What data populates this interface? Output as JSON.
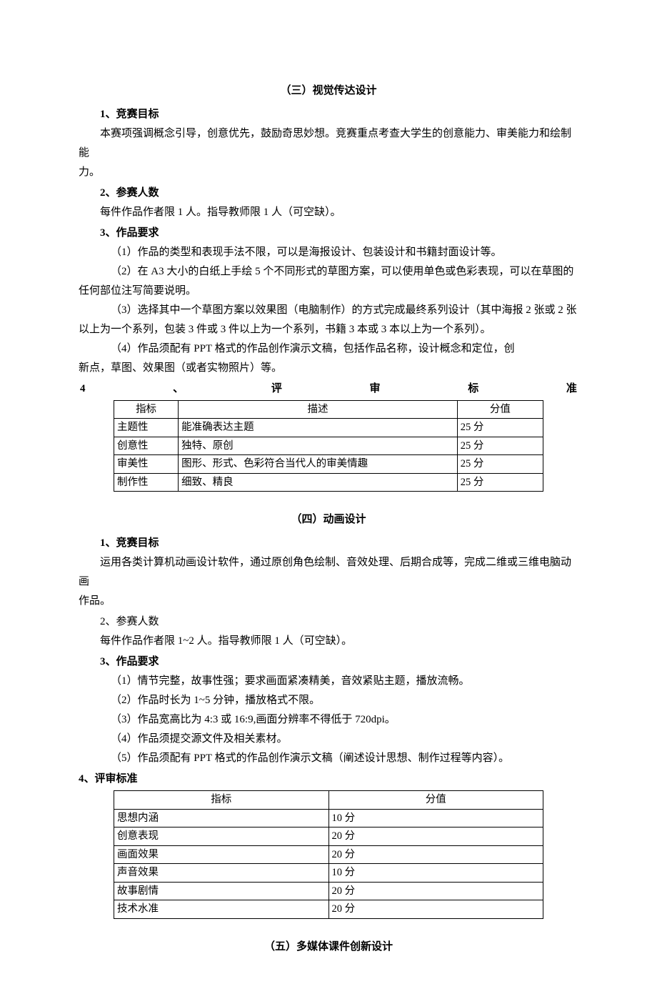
{
  "s3": {
    "title": "（三）视觉传达设计",
    "h1": "1、竞赛目标",
    "p1a": "本赛项强调概念引导，创意优先，鼓励奇思妙想。竞赛重点考查大学生的创意能力、审美能力和绘制能",
    "p1b": "力。",
    "h2": "2、参赛人数",
    "p2": "每件作品作者限 1 人。指导教师限 1 人（可空缺）。",
    "h3": "3、作品要求",
    "i1": "（1）作品的类型和表现手法不限，可以是海报设计、包装设计和书籍封面设计等。",
    "i2a": "（2）在 A3 大小的白纸上手绘 5 个不同形式的草图方案，可以使用单色或色彩表现，可以在草图的",
    "i2b": "任何部位注写简要说明。",
    "i3a": "（3）选择其中一个草图方案以效果图（电脑制作）的方式完成最终系列设计（其中海报 2 张或 2 张",
    "i3b": "以上为一个系列，包装 3 件或 3 件以上为一个系列，书籍 3 本或 3 本以上为一个系列）。",
    "i4a": "（4）作品须配有 PPT 格式的作品创作演示文稿，包括作品名称，设计概念和定位，创",
    "i4b": "新点，草图、效果图（或者实物照片）等。",
    "h4": {
      "a": "4",
      "b": "、",
      "c": "评",
      "d": "审",
      "e": "标",
      "f": "准"
    },
    "table": {
      "headers": [
        "指标",
        "描述",
        "分值"
      ],
      "rows": [
        [
          "主题性",
          "能准确表达主题",
          "25 分"
        ],
        [
          "创意性",
          "独特、原创",
          "25 分"
        ],
        [
          "审美性",
          "图形、形式、色彩符合当代人的审美情趣",
          "25 分"
        ],
        [
          "制作性",
          "细致、精良",
          "25 分"
        ]
      ]
    }
  },
  "s4": {
    "title": "（四）动画设计",
    "h1": "1、竞赛目标",
    "p1a": "运用各类计算机动画设计软件，通过原创角色绘制、音效处理、后期合成等，完成二维或三维电脑动画",
    "p1b": "作品。",
    "h2": "2、参赛人数",
    "p2": "每件作品作者限 1~2 人。指导教师限 1 人（可空缺）。",
    "h3": "3、作品要求",
    "i1": "（1）情节完整，故事性强；要求画面紧凑精美，音效紧贴主题，播放流畅。",
    "i2": "（2）作品时长为 1~5 分钟，播放格式不限。",
    "i3": "（3）作品宽高比为 4:3 或 16:9,画面分辨率不得低于 720dpi。",
    "i4": "（4）作品须提交源文件及相关素材。",
    "i5": "（5）作品须配有 PPT 格式的作品创作演示文稿（阐述设计思想、制作过程等内容）。",
    "h4": "4、评审标准",
    "table": {
      "headers": [
        "指标",
        "分值"
      ],
      "rows": [
        [
          "思想内涵",
          "10 分"
        ],
        [
          "创意表现",
          "20 分"
        ],
        [
          "画面效果",
          "20 分"
        ],
        [
          "声音效果",
          "10 分"
        ],
        [
          "故事剧情",
          "20 分"
        ],
        [
          "技术水准",
          "20 分"
        ]
      ]
    }
  },
  "s5": {
    "title": "（五）多媒体课件创新设计"
  }
}
